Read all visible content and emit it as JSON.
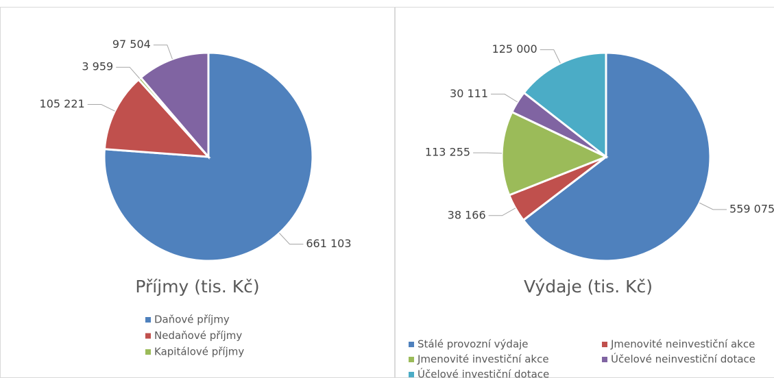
{
  "chart_data": [
    {
      "type": "pie",
      "title": "Příjmy (tis. Kč)",
      "categories": [
        "Daňové příjmy",
        "Nedaňové příjmy",
        "Kapitálové příjmy",
        null
      ],
      "values": [
        661103,
        105221,
        3959,
        97504
      ],
      "value_labels": [
        "661 103",
        "105 221",
        "3 959",
        "97 504"
      ],
      "colors": [
        "#4f81bd",
        "#c0504d",
        "#9bbb59",
        "#8064a2"
      ]
    },
    {
      "type": "pie",
      "title": "Výdaje (tis. Kč)",
      "categories": [
        "Stálé provozní výdaje",
        "Jmenovité neinvestiční akce",
        "Jmenovité investiční akce",
        "Účelové neinvestiční dotace",
        "Účelové investiční dotace"
      ],
      "values": [
        559075,
        38166,
        113255,
        30111,
        125000
      ],
      "value_labels": [
        "559 075",
        "38 166",
        "113 255",
        "30 111",
        "125 000"
      ],
      "colors": [
        "#4f81bd",
        "#c0504d",
        "#9bbb59",
        "#8064a2",
        "#4bacc6"
      ]
    }
  ]
}
